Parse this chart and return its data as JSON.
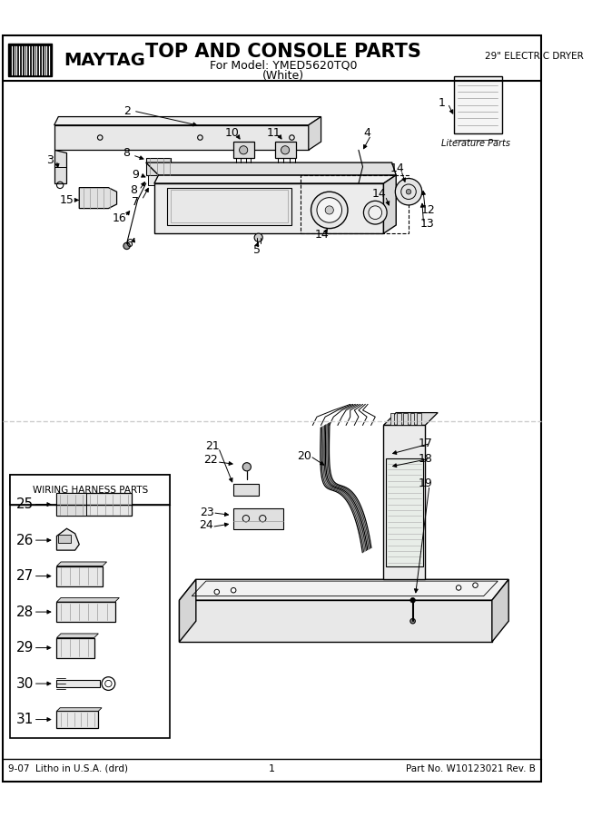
{
  "title": "TOP AND CONSOLE PARTS",
  "subtitle1": "For Model: YMED5620TQ0",
  "subtitle2": "(White)",
  "brand": "MAYTAG",
  "appliance_type": "29\" ELECTRIC DRYER",
  "footer_left": "9-07  Litho in U.S.A. (drd)",
  "footer_center": "1",
  "footer_right": "Part No. W10123021 Rev. B",
  "bg_color": "#FFFFFF",
  "literature_parts_label": "Literature Parts",
  "wiring_harness_label": "WIRING HARNESS PARTS"
}
